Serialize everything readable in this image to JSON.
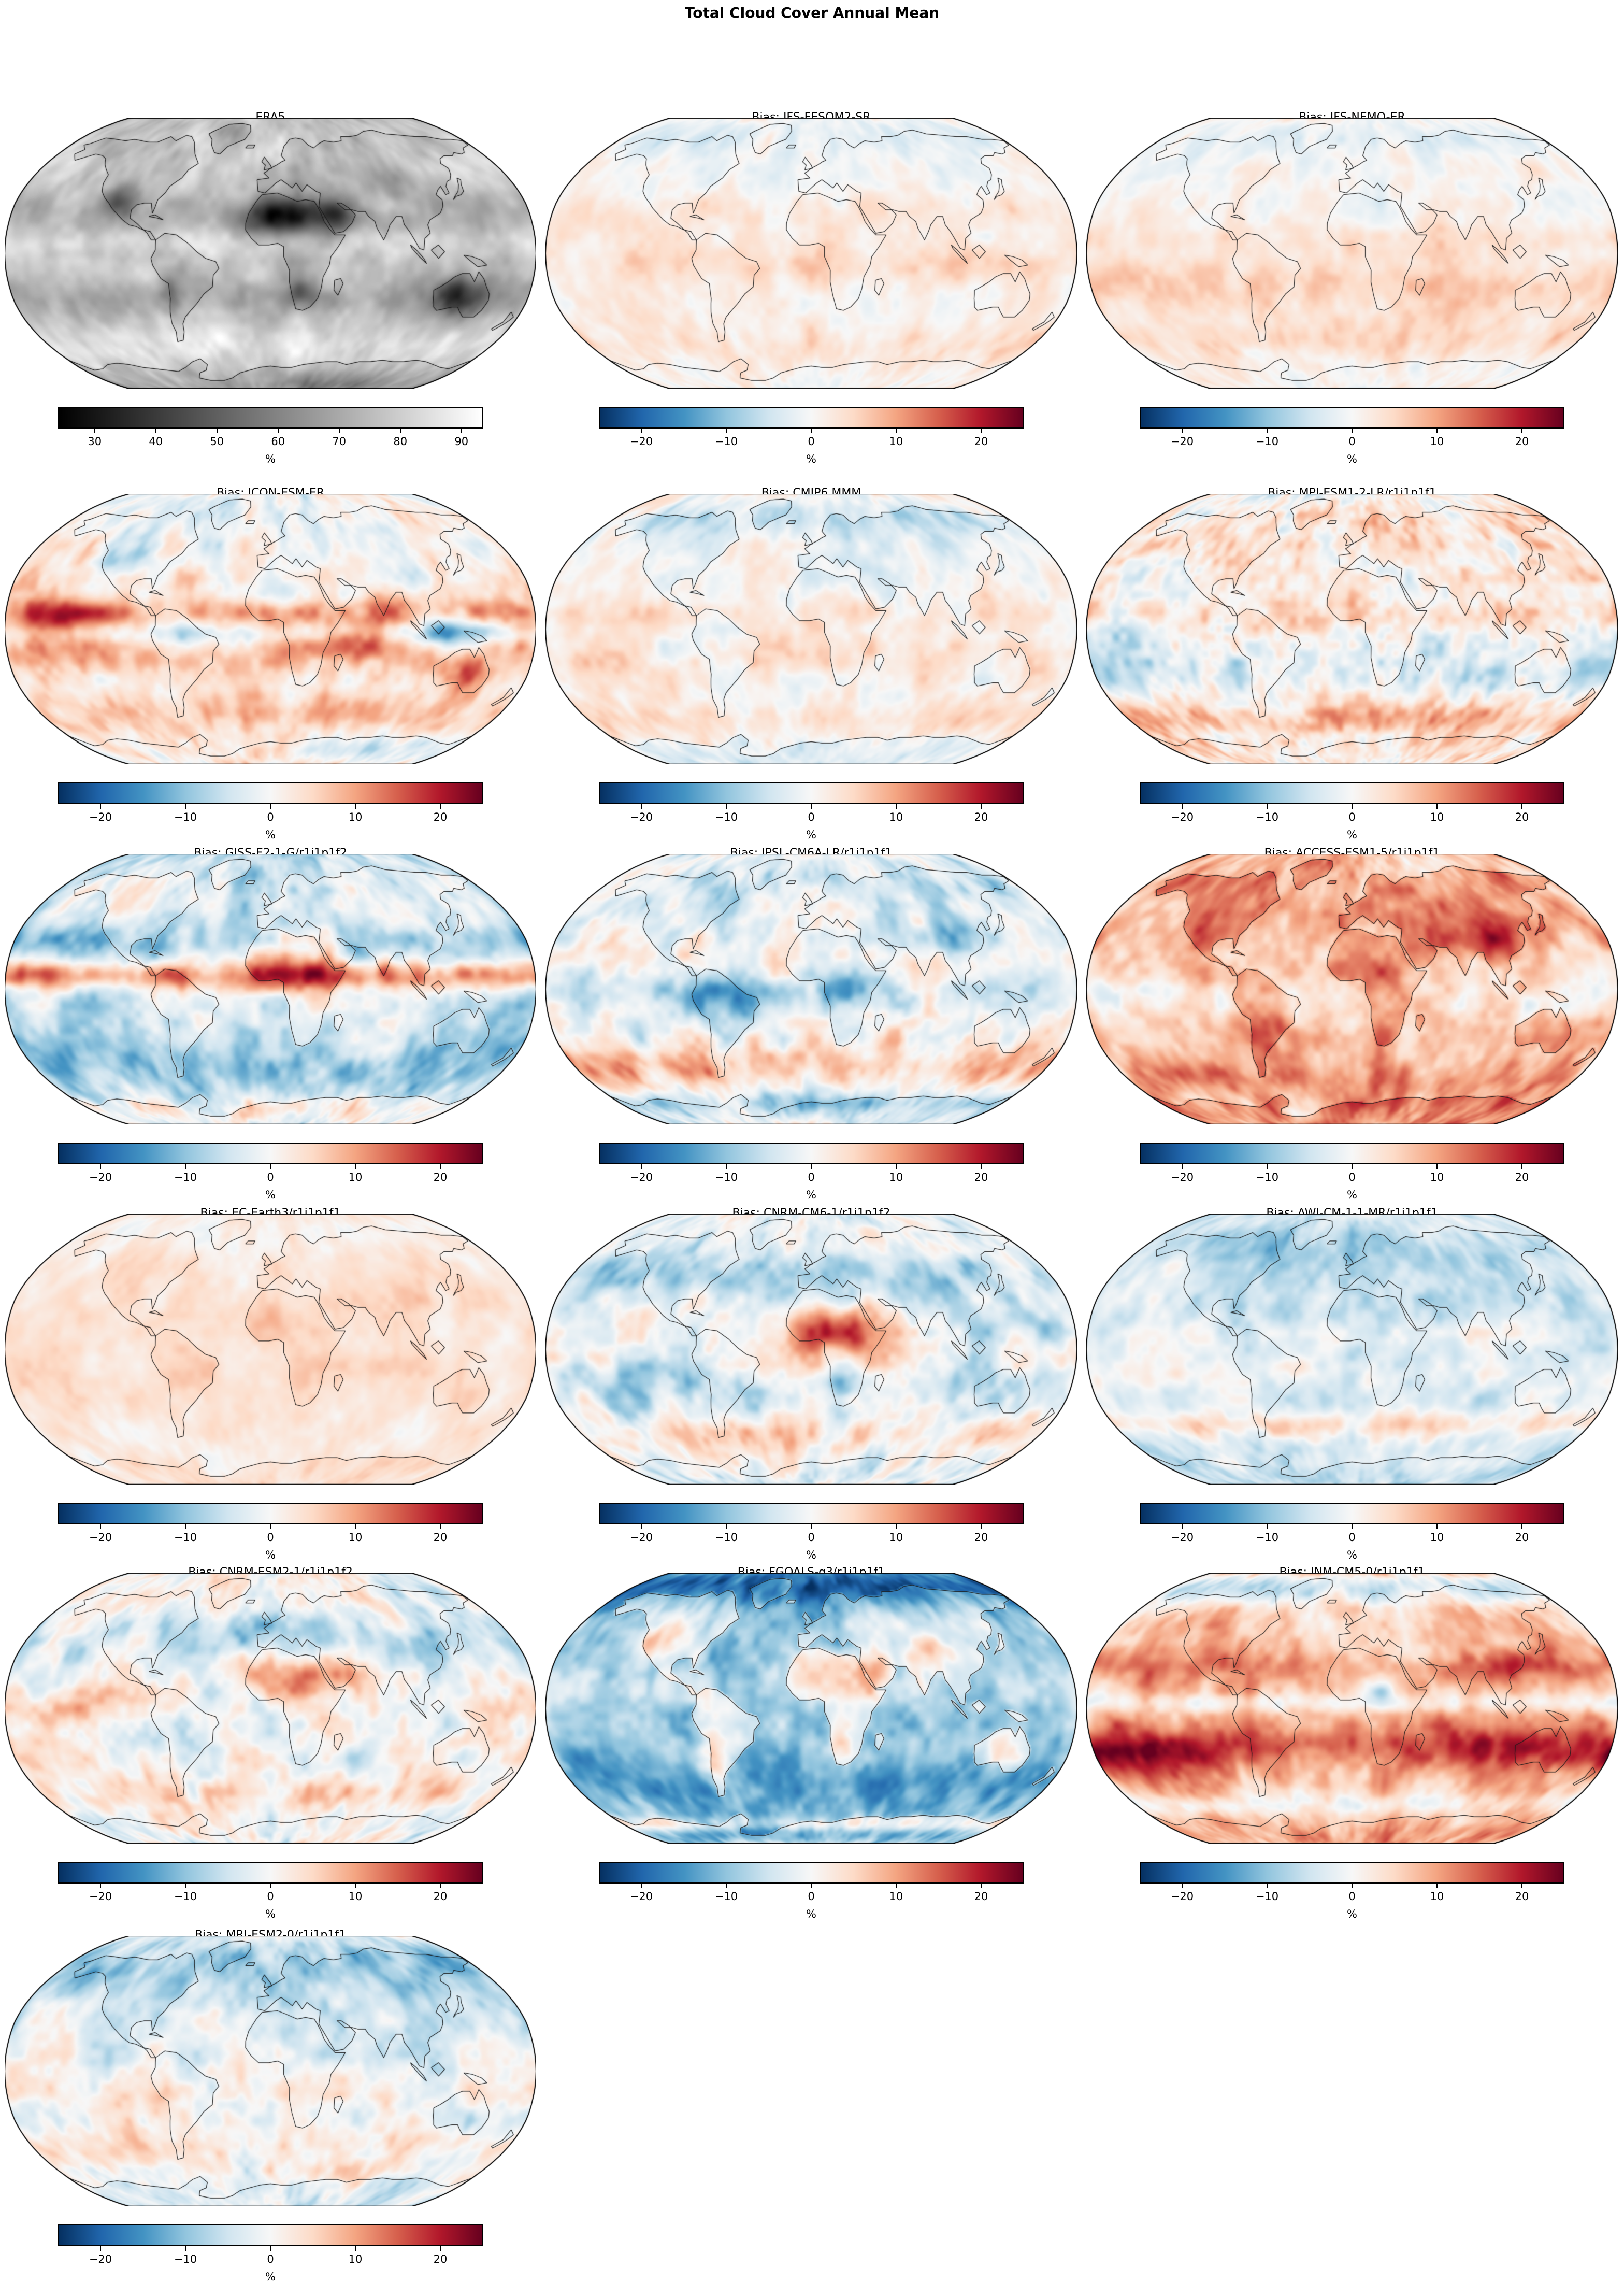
{
  "figure": {
    "title": "Total Cloud Cover Annual Mean",
    "unit": "%"
  },
  "colors": {
    "background": "#ffffff",
    "text": "#000000",
    "coastline": "#1a1a1a",
    "map_edge": "#000000",
    "reference_colormap": [
      "#000000",
      "#ffffff"
    ],
    "bias_colormap": [
      "#053061",
      "#2166ac",
      "#4393c3",
      "#92c5de",
      "#d1e5f0",
      "#f7f7f7",
      "#fddbc7",
      "#f4a582",
      "#d6604d",
      "#b2182b",
      "#67001f"
    ]
  },
  "panels": [
    {
      "title": "ERA5",
      "colorbar": {
        "label": "%",
        "ticks": [
          "30",
          "40",
          "50",
          "60",
          "70",
          "80",
          "90"
        ]
      }
    },
    {
      "title": "Bias: IFS-FESOM2-SR",
      "colorbar": {
        "label": "%",
        "ticks": [
          "−20",
          "−10",
          "0",
          "10",
          "20"
        ]
      }
    },
    {
      "title": "Bias: IFS-NEMO-ER",
      "colorbar": {
        "label": "%",
        "ticks": [
          "−20",
          "−10",
          "0",
          "10",
          "20"
        ]
      }
    },
    {
      "title": "Bias: ICON-ESM-ER",
      "colorbar": {
        "label": "%",
        "ticks": [
          "−20",
          "−10",
          "0",
          "10",
          "20"
        ]
      }
    },
    {
      "title": "Bias: CMIP6 MMM",
      "colorbar": {
        "label": "%",
        "ticks": [
          "−20",
          "−10",
          "0",
          "10",
          "20"
        ]
      }
    },
    {
      "title": "Bias: MPI-ESM1-2-LR/r1i1p1f1",
      "colorbar": {
        "label": "%",
        "ticks": [
          "−20",
          "−10",
          "0",
          "10",
          "20"
        ]
      }
    },
    {
      "title": "Bias: GISS-E2-1-G/r1i1p1f2",
      "colorbar": {
        "label": "%",
        "ticks": [
          "−20",
          "−10",
          "0",
          "10",
          "20"
        ]
      }
    },
    {
      "title": "Bias: IPSL-CM6A-LR/r1i1p1f1",
      "colorbar": {
        "label": "%",
        "ticks": [
          "−20",
          "−10",
          "0",
          "10",
          "20"
        ]
      }
    },
    {
      "title": "Bias: ACCESS-ESM1-5/r1i1p1f1",
      "colorbar": {
        "label": "%",
        "ticks": [
          "−20",
          "−10",
          "0",
          "10",
          "20"
        ]
      }
    },
    {
      "title": "Bias: EC-Earth3/r1i1p1f1",
      "colorbar": {
        "label": "%",
        "ticks": [
          "−20",
          "−10",
          "0",
          "10",
          "20"
        ]
      }
    },
    {
      "title": "Bias: CNRM-CM6-1/r1i1p1f2",
      "colorbar": {
        "label": "%",
        "ticks": [
          "−20",
          "−10",
          "0",
          "10",
          "20"
        ]
      }
    },
    {
      "title": "Bias: AWI-CM-1-1-MR/r1i1p1f1",
      "colorbar": {
        "label": "%",
        "ticks": [
          "−20",
          "−10",
          "0",
          "10",
          "20"
        ]
      }
    },
    {
      "title": "Bias: CNRM-ESM2-1/r1i1p1f2",
      "colorbar": {
        "label": "%",
        "ticks": [
          "−20",
          "−10",
          "0",
          "10",
          "20"
        ]
      }
    },
    {
      "title": "Bias: FGOALS-g3/r1i1p1f1",
      "colorbar": {
        "label": "%",
        "ticks": [
          "−20",
          "−10",
          "0",
          "10",
          "20"
        ]
      }
    },
    {
      "title": "Bias: INM-CM5-0/r1i1p1f1",
      "colorbar": {
        "label": "%",
        "ticks": [
          "−20",
          "−10",
          "0",
          "10",
          "20"
        ]
      }
    },
    {
      "title": "Bias: MRI-ESM2-0/r1i1p1f1",
      "colorbar": {
        "label": "%",
        "ticks": [
          "−20",
          "−10",
          "0",
          "10",
          "20"
        ]
      }
    }
  ],
  "chart_data": {
    "type": "heatmap",
    "suptitle": "Total Cloud Cover Annual Mean",
    "layout": "grid of 6 rows x 3 columns of world maps; last row has a single map in column 1",
    "projection": "Robinson",
    "units": "%",
    "panels": [
      {
        "title": "ERA5",
        "role": "reference-field",
        "colormap": "grayscale black-to-white",
        "vmin": 24,
        "vmax": 93.5,
        "colorbar_ticks": [
          30,
          40,
          50,
          60,
          70,
          80,
          90
        ],
        "units": "%"
      },
      {
        "title": "Bias: IFS-FESOM2-SR",
        "role": "model-bias",
        "colormap": "RdBu_r",
        "vmin": -25,
        "vmax": 25,
        "colorbar_ticks": [
          -20,
          -10,
          0,
          10,
          20
        ],
        "units": "%"
      },
      {
        "title": "Bias: IFS-NEMO-ER",
        "role": "model-bias",
        "colormap": "RdBu_r",
        "vmin": -25,
        "vmax": 25,
        "colorbar_ticks": [
          -20,
          -10,
          0,
          10,
          20
        ],
        "units": "%"
      },
      {
        "title": "Bias: ICON-ESM-ER",
        "role": "model-bias",
        "colormap": "RdBu_r",
        "vmin": -25,
        "vmax": 25,
        "colorbar_ticks": [
          -20,
          -10,
          0,
          10,
          20
        ],
        "units": "%"
      },
      {
        "title": "Bias: CMIP6 MMM",
        "role": "model-bias",
        "colormap": "RdBu_r",
        "vmin": -25,
        "vmax": 25,
        "colorbar_ticks": [
          -20,
          -10,
          0,
          10,
          20
        ],
        "units": "%"
      },
      {
        "title": "Bias: MPI-ESM1-2-LR/r1i1p1f1",
        "role": "model-bias",
        "colormap": "RdBu_r",
        "vmin": -25,
        "vmax": 25,
        "colorbar_ticks": [
          -20,
          -10,
          0,
          10,
          20
        ],
        "units": "%"
      },
      {
        "title": "Bias: GISS-E2-1-G/r1i1p1f2",
        "role": "model-bias",
        "colormap": "RdBu_r",
        "vmin": -25,
        "vmax": 25,
        "colorbar_ticks": [
          -20,
          -10,
          0,
          10,
          20
        ],
        "units": "%"
      },
      {
        "title": "Bias: IPSL-CM6A-LR/r1i1p1f1",
        "role": "model-bias",
        "colormap": "RdBu_r",
        "vmin": -25,
        "vmax": 25,
        "colorbar_ticks": [
          -20,
          -10,
          0,
          10,
          20
        ],
        "units": "%"
      },
      {
        "title": "Bias: ACCESS-ESM1-5/r1i1p1f1",
        "role": "model-bias",
        "colormap": "RdBu_r",
        "vmin": -25,
        "vmax": 25,
        "colorbar_ticks": [
          -20,
          -10,
          0,
          10,
          20
        ],
        "units": "%"
      },
      {
        "title": "Bias: EC-Earth3/r1i1p1f1",
        "role": "model-bias",
        "colormap": "RdBu_r",
        "vmin": -25,
        "vmax": 25,
        "colorbar_ticks": [
          -20,
          -10,
          0,
          10,
          20
        ],
        "units": "%"
      },
      {
        "title": "Bias: CNRM-CM6-1/r1i1p1f2",
        "role": "model-bias",
        "colormap": "RdBu_r",
        "vmin": -25,
        "vmax": 25,
        "colorbar_ticks": [
          -20,
          -10,
          0,
          10,
          20
        ],
        "units": "%"
      },
      {
        "title": "Bias: AWI-CM-1-1-MR/r1i1p1f1",
        "role": "model-bias",
        "colormap": "RdBu_r",
        "vmin": -25,
        "vmax": 25,
        "colorbar_ticks": [
          -20,
          -10,
          0,
          10,
          20
        ],
        "units": "%"
      },
      {
        "title": "Bias: CNRM-ESM2-1/r1i1p1f2",
        "role": "model-bias",
        "colormap": "RdBu_r",
        "vmin": -25,
        "vmax": 25,
        "colorbar_ticks": [
          -20,
          -10,
          0,
          10,
          20
        ],
        "units": "%"
      },
      {
        "title": "Bias: FGOALS-g3/r1i1p1f1",
        "role": "model-bias",
        "colormap": "RdBu_r",
        "vmin": -25,
        "vmax": 25,
        "colorbar_ticks": [
          -20,
          -10,
          0,
          10,
          20
        ],
        "units": "%"
      },
      {
        "title": "Bias: INM-CM5-0/r1i1p1f1",
        "role": "model-bias",
        "colormap": "RdBu_r",
        "vmin": -25,
        "vmax": 25,
        "colorbar_ticks": [
          -20,
          -10,
          0,
          10,
          20
        ],
        "units": "%"
      },
      {
        "title": "Bias: MRI-ESM2-0/r1i1p1f1",
        "role": "model-bias",
        "colormap": "RdBu_r",
        "vmin": -25,
        "vmax": 25,
        "colorbar_ticks": [
          -20,
          -10,
          0,
          10,
          20
        ],
        "units": "%"
      }
    ]
  }
}
